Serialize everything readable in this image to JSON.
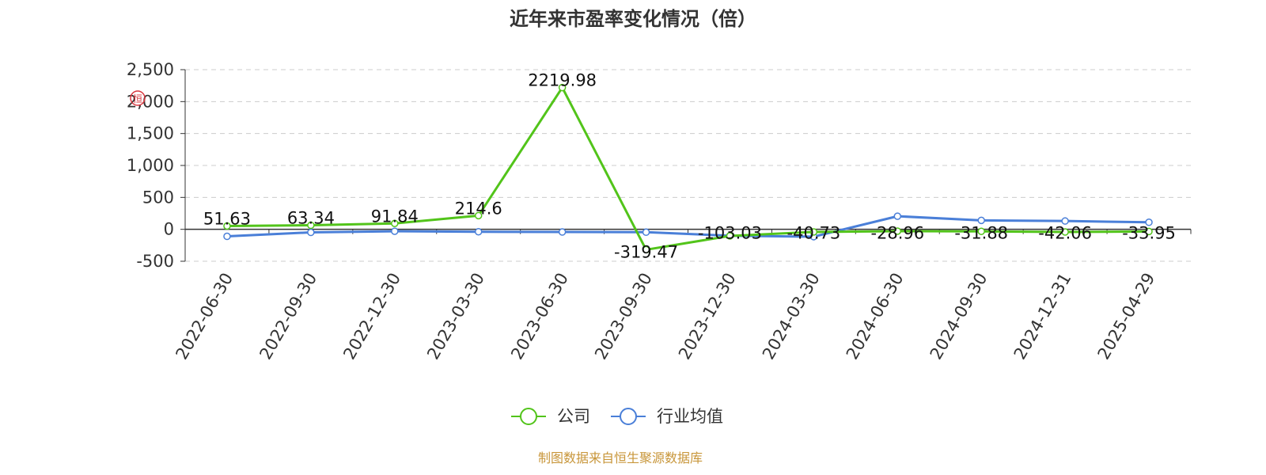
{
  "chart_data": {
    "type": "line",
    "title": "近年来市盈率变化情况（倍）",
    "categories": [
      "2022-06-30",
      "2022-09-30",
      "2022-12-30",
      "2023-03-30",
      "2023-06-30",
      "2023-09-30",
      "2023-12-30",
      "2024-03-30",
      "2024-06-30",
      "2024-09-30",
      "2024-12-31",
      "2025-04-29"
    ],
    "series": [
      {
        "name": "公司",
        "color": "#52c41a",
        "values": [
          51.63,
          63.34,
          91.84,
          214.6,
          2219.98,
          -319.47,
          -103.03,
          -40.73,
          -28.96,
          -31.88,
          -42.06,
          -33.95
        ],
        "labels": [
          "51.63",
          "63.34",
          "91.84",
          "214.6",
          "2219.98",
          "-319.47",
          "-103.03",
          "-40.73",
          "-28.96",
          "-31.88",
          "-42.06",
          "-33.95"
        ]
      },
      {
        "name": "行业均值",
        "color": "#4a7fd8",
        "values": [
          -110,
          -48,
          -30,
          -38,
          -42,
          -45,
          -100,
          -115,
          205,
          140,
          130,
          110
        ]
      }
    ],
    "ylim": [
      -500,
      2500
    ],
    "yticks": [
      "-500",
      "0",
      "500",
      "1,000",
      "1,500",
      "2,000",
      "2,500"
    ],
    "yticks_values": [
      -500,
      0,
      500,
      1000,
      1500,
      2000,
      2500
    ],
    "grid": true,
    "legend_position": "bottom-center"
  },
  "source": "制图数据来自恒生聚源数据库",
  "watermark_text": "恒"
}
